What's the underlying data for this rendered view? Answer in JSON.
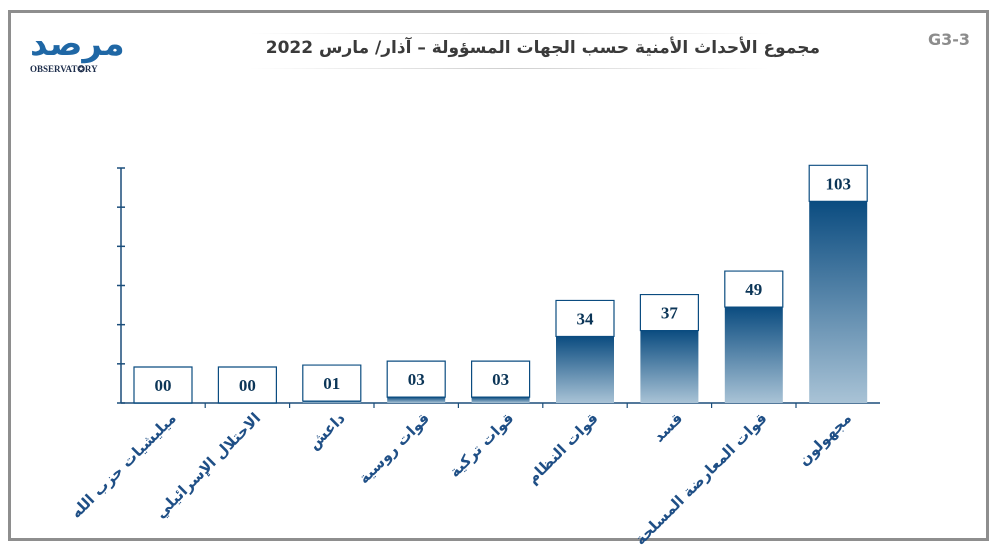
{
  "header": {
    "code": "G3-3",
    "title": "مجموع الأحداث الأمنية حسب الجهات المسؤولة – آذار/ مارس 2022",
    "logo_text": "مرصد",
    "logo_sub": "OBSERVAT✪RY"
  },
  "colors": {
    "bar_top": "#0b4c80",
    "bar_bottom": "#a9c3d6",
    "axis": "#1b4d7a",
    "value_text": "#0b3557",
    "label_text": "#1f4f86",
    "border": "#8e8e8e"
  },
  "chart_data": {
    "type": "bar",
    "title": "مجموع الأحداث الأمنية حسب الجهات المسؤولة – آذار/ مارس 2022",
    "categories": [
      "ميليشيات حزب الله",
      "الاحتلال الإسرائيلي",
      "داعش",
      "قوات روسية",
      "قوات تركية",
      "قوات النظام",
      "قسد",
      "قوات المعارضة المسلحة",
      "مجهولون"
    ],
    "values": [
      0,
      0,
      1,
      3,
      3,
      34,
      37,
      49,
      103
    ],
    "value_labels": [
      "00",
      "00",
      "01",
      "03",
      "03",
      "34",
      "37",
      "49",
      "103"
    ],
    "ylim": [
      0,
      120
    ],
    "ticks": [
      0,
      20,
      40,
      60,
      80,
      100,
      120
    ],
    "grid": false,
    "legend": "none"
  }
}
